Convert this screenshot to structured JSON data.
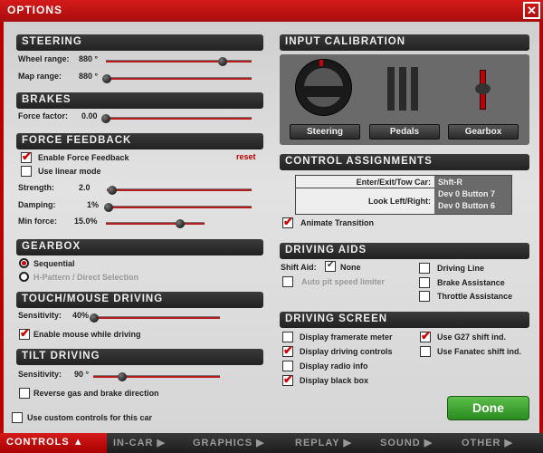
{
  "window": {
    "title": "OPTIONS",
    "close": "✕"
  },
  "steering": {
    "title": "STEERING",
    "wheel_label": "Wheel range:",
    "wheel_value": "880 °",
    "wheel_pct": 80,
    "map_label": "Map range:",
    "map_value": "880 °",
    "map_pct": 0
  },
  "brakes": {
    "title": "BRAKES",
    "force_label": "Force factor:",
    "force_value": "0.00",
    "force_pct": 0
  },
  "ffb": {
    "title": "FORCE FEEDBACK",
    "enable": "Enable Force Feedback",
    "enable_checked": true,
    "linear": "Use linear mode",
    "linear_checked": false,
    "reset": "reset",
    "strength_label": "Strength:",
    "strength_value": "2.0",
    "strength_pct": 4,
    "damping_label": "Damping:",
    "damping_value": "1%",
    "damping_pct": 0,
    "min_label": "Min force:",
    "min_value": "15.0%",
    "min_pct": 75
  },
  "gearbox": {
    "title": "GEARBOX",
    "sequential": "Sequential",
    "hpattern": "H-Pattern / Direct Selection",
    "selected": "Sequential"
  },
  "touch": {
    "title": "TOUCH/MOUSE DRIVING",
    "sens_label": "Sensitivity:",
    "sens_value": "40%",
    "sens_pct": 0,
    "enable_mouse": "Enable mouse while driving",
    "enable_mouse_checked": true
  },
  "tilt": {
    "title": "TILT DRIVING",
    "sens_label": "Sensitivity:",
    "sens_value": "90 °",
    "sens_pct": 23,
    "reverse": "Reverse gas and brake direction",
    "reverse_checked": false
  },
  "custom": {
    "label": "Use custom controls for this car",
    "checked": false
  },
  "calibration": {
    "title": "INPUT CALIBRATION",
    "steering": "Steering",
    "pedals": "Pedals",
    "gearbox": "Gearbox"
  },
  "assignments": {
    "title": "CONTROL ASSIGNMENTS",
    "rows": [
      {
        "action": "Enter/Exit/Tow Car:",
        "keys": [
          "Shft-R"
        ]
      },
      {
        "action": "Look Left/Right:",
        "keys": [
          "Dev 0 Button 7",
          "Dev 0 Button 6"
        ]
      }
    ],
    "animate": "Animate Transition",
    "animate_checked": true
  },
  "aids": {
    "title": "DRIVING AIDS",
    "shift_label": "Shift Aid:",
    "shift_value": "None",
    "auto_pit": "Auto pit speed limiter",
    "driving_line": "Driving Line",
    "brake_assist": "Brake Assistance",
    "throttle_assist": "Throttle Assistance"
  },
  "screen": {
    "title": "DRIVING SCREEN",
    "framerate": "Display framerate meter",
    "framerate_checked": false,
    "controls": "Display driving controls",
    "controls_checked": true,
    "radio": "Display radio info",
    "radio_checked": false,
    "blackbox": "Display black box",
    "blackbox_checked": true,
    "g27": "Use G27 shift ind.",
    "g27_checked": true,
    "fanatec": "Use Fanatec shift ind.",
    "fanatec_checked": false
  },
  "done": "Done",
  "tabs": [
    {
      "label": "CONTROLS ▲",
      "active": true
    },
    {
      "label": "IN-CAR ▶"
    },
    {
      "label": "GRAPHICS ▶"
    },
    {
      "label": "REPLAY ▶"
    },
    {
      "label": "SOUND ▶"
    },
    {
      "label": "OTHER ▶"
    }
  ],
  "colors": {
    "accent": "#c00000",
    "done": "#3a9a2a"
  }
}
